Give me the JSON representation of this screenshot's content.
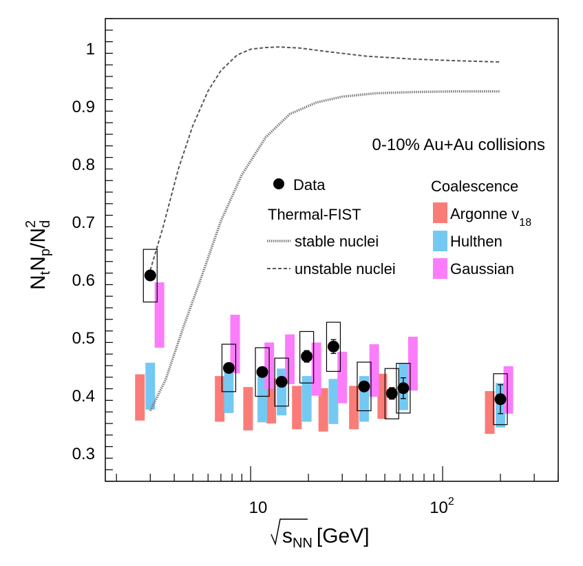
{
  "chart_data": {
    "type": "scatter",
    "title": "0-10% Au+Au collisions",
    "xlabel_base": "s",
    "xlabel_sub": "NN",
    "xlabel_unit": "[GeV]",
    "xscale": "log",
    "xlim": [
      1.75,
      400
    ],
    "ylim": [
      0.25,
      1.05
    ],
    "ylabel_parts": {
      "n1": "N",
      "t": "t",
      "n2": "N",
      "p": "p",
      "slash": "/N",
      "sup": "2",
      "d": "d"
    },
    "y_ticks": [
      0.3,
      0.4,
      0.5,
      0.6,
      0.7,
      0.8,
      0.9,
      1.0
    ],
    "y_tick_labels": [
      "0.3",
      "0.4",
      "0.5",
      "0.6",
      "0.7",
      "0.8",
      "0.9",
      "1"
    ],
    "x_tick_labels": {
      "ten": "10",
      "hundred_base": "10",
      "hundred_exp": "2"
    },
    "data": {
      "name": "Data",
      "x": [
        3,
        7.7,
        11.5,
        14.5,
        19.6,
        27,
        39,
        54.4,
        62.4,
        200
      ],
      "y": [
        0.606,
        0.446,
        0.439,
        0.422,
        0.466,
        0.483,
        0.414,
        0.402,
        0.411,
        0.392
      ],
      "stat_err": [
        0.005,
        0.006,
        0.006,
        0.007,
        0.01,
        0.012,
        0.006,
        0.01,
        0.018,
        0.025
      ],
      "sys_low": [
        0.56,
        0.405,
        0.397,
        0.38,
        0.42,
        0.44,
        0.372,
        0.358,
        0.368,
        0.348
      ],
      "sys_high": [
        0.651,
        0.487,
        0.481,
        0.463,
        0.509,
        0.525,
        0.456,
        0.445,
        0.454,
        0.436
      ]
    },
    "coalescence": {
      "label": "Coalescence",
      "argonne": {
        "name": "Argonne v",
        "sub": "18",
        "color": "#fa7c78",
        "x": [
          2.65,
          6.9,
          9.7,
          12.8,
          17.4,
          23.9,
          34.5,
          48.5,
          0,
          176
        ],
        "low": [
          0.355,
          0.353,
          0.338,
          0.35,
          0.34,
          0.336,
          0.34,
          0.358,
          0,
          0.332
        ],
        "high": [
          0.435,
          0.432,
          0.413,
          0.428,
          0.415,
          0.411,
          0.415,
          0.436,
          0,
          0.406
        ]
      },
      "hulthen": {
        "name": "Hulthen",
        "color": "#74c9f3",
        "x": [
          3,
          7.7,
          11.5,
          14.5,
          19.6,
          27,
          39,
          62.4,
          0,
          200
        ],
        "low": [
          0.374,
          0.368,
          0.352,
          0.364,
          0.353,
          0.349,
          0.353,
          0.373,
          0,
          0.343
        ],
        "high": [
          0.455,
          0.449,
          0.431,
          0.445,
          0.432,
          0.427,
          0.432,
          0.454,
          0,
          0.42
        ]
      },
      "gaussian": {
        "name": "Gaussian",
        "color": "#fb7dfb",
        "x": [
          3.35,
          8.3,
          12.5,
          16,
          22,
          30,
          44,
          70,
          0,
          220
        ],
        "low": [
          0.481,
          0.437,
          0.41,
          0.418,
          0.398,
          0.385,
          0.396,
          0.407,
          0,
          0.367
        ],
        "high": [
          0.594,
          0.538,
          0.49,
          0.504,
          0.49,
          0.474,
          0.487,
          0.5,
          0,
          0.449
        ]
      }
    },
    "thermal_fist": {
      "label": "Thermal-FIST",
      "stable": {
        "name": "stable nuclei",
        "color": "#777777",
        "x": [
          3,
          3.6,
          4.5,
          5.5,
          7,
          9,
          12,
          16,
          22,
          30,
          45,
          70,
          110,
          200
        ],
        "y": [
          0.372,
          0.425,
          0.52,
          0.6,
          0.7,
          0.78,
          0.845,
          0.885,
          0.905,
          0.915,
          0.921,
          0.923,
          0.924,
          0.924
        ]
      },
      "unstable": {
        "name": "unstable nuclei",
        "color": "#555555",
        "x": [
          3,
          3.5,
          4.2,
          5,
          6,
          7,
          8.5,
          10,
          12,
          14,
          18,
          25,
          40,
          70,
          120,
          200
        ],
        "y": [
          0.615,
          0.69,
          0.79,
          0.865,
          0.925,
          0.96,
          0.987,
          0.997,
          1.0,
          1.001,
          0.999,
          0.993,
          0.985,
          0.98,
          0.977,
          0.975
        ]
      }
    }
  }
}
